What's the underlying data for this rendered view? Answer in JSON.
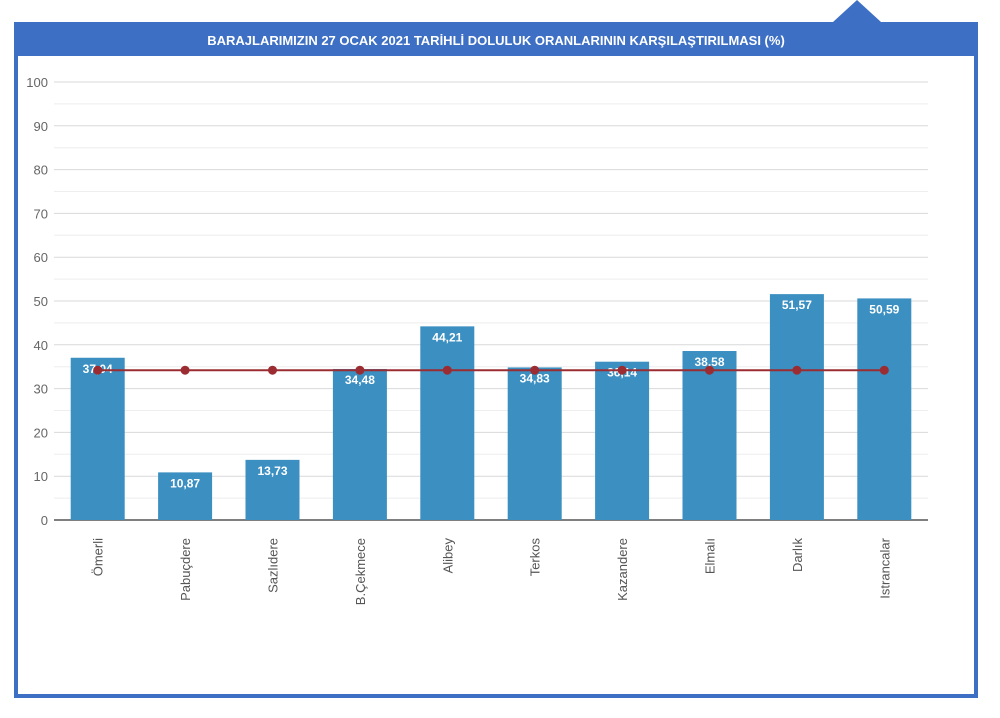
{
  "chart_data": {
    "type": "bar",
    "title": "BARAJLARIMIZIN 27 OCAK 2021 TARİHLİ DOLULUK ORANLARININ KARŞILAŞTIRILMASI (%)",
    "categories": [
      "Ömerli",
      "Pabuçdere",
      "Sazlıdere",
      "B.Çekmece",
      "Alibey",
      "Terkos",
      "Kazandere",
      "Elmalı",
      "Darlık",
      "Istrancalar"
    ],
    "values": [
      37.04,
      10.87,
      13.73,
      34.48,
      44.21,
      34.83,
      36.14,
      38.58,
      51.57,
      50.59
    ],
    "value_labels": [
      "37,04",
      "10,87",
      "13,73",
      "34,48",
      "44,21",
      "34,83",
      "36,14",
      "38,58",
      "51,57",
      "50,59"
    ],
    "average_line": 34.2,
    "ylim": [
      0,
      100
    ],
    "yticks": [
      "0",
      "10",
      "20",
      "30",
      "40",
      "50",
      "60",
      "70",
      "80",
      "90",
      "100"
    ],
    "grid": true,
    "colors": {
      "bar": "#3b8fc1",
      "line": "#9b2d32",
      "marker": "#9b2d32",
      "frame": "#3d6fc4",
      "grid": "#dddddd"
    }
  }
}
